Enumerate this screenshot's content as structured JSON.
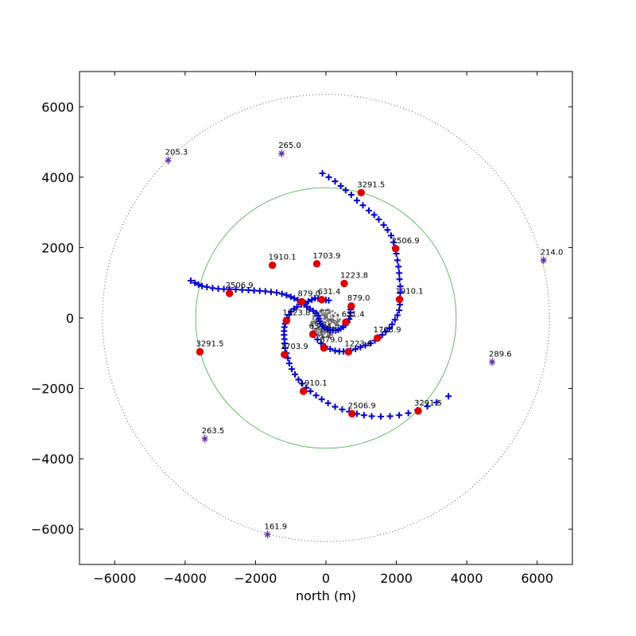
{
  "chart_data": {
    "type": "scatter",
    "title": "",
    "xlabel": "north (m)",
    "ylabel": "",
    "xlim": [
      -7000,
      7000
    ],
    "ylim": [
      -7000,
      7000
    ],
    "xticks": [
      -6000,
      -4000,
      -2000,
      0,
      2000,
      4000,
      6000
    ],
    "yticks": [
      -6000,
      -4000,
      -2000,
      0,
      2000,
      4000,
      6000
    ],
    "xtick_labels": [
      "−6000",
      "−4000",
      "−2000",
      "0",
      "2000",
      "4000",
      "6000"
    ],
    "ytick_labels": [
      "−6000",
      "−4000",
      "−2000",
      "0",
      "2000",
      "4000",
      "6000"
    ],
    "grid": false,
    "colors": {
      "antenna_marker": "#0000cc",
      "labeled_station": "#dd0000",
      "outlier_marker": "#6633aa",
      "core_points": "#555555",
      "inner_circle": "#44aa44",
      "outer_circle": "#555555"
    },
    "circles": [
      {
        "kind": "inner",
        "center": [
          0,
          0
        ],
        "radius": 3700,
        "style": "solid"
      },
      {
        "kind": "outer",
        "center": [
          0,
          0
        ],
        "radius": 6350,
        "style": "dotted"
      }
    ],
    "arms": [
      {
        "points": [
          [
            80,
            500
          ],
          [
            0,
            510
          ],
          [
            -120,
            540
          ],
          [
            -220,
            550
          ],
          [
            -310,
            560
          ],
          [
            -400,
            520
          ],
          [
            -500,
            470
          ],
          [
            -600,
            430
          ],
          [
            -700,
            380
          ],
          [
            -820,
            320
          ],
          [
            -910,
            260
          ],
          [
            -990,
            180
          ],
          [
            -1050,
            90
          ],
          [
            -1110,
            0
          ],
          [
            -1140,
            -80
          ],
          [
            -1160,
            -160
          ],
          [
            -1180,
            -260
          ],
          [
            -1190,
            -370
          ],
          [
            -1190,
            -480
          ],
          [
            -1180,
            -600
          ],
          [
            -1170,
            -720
          ],
          [
            -1160,
            -850
          ],
          [
            -1120,
            -1000
          ],
          [
            -1080,
            -1140
          ],
          [
            -1040,
            -1290
          ],
          [
            -970,
            -1450
          ],
          [
            -880,
            -1600
          ],
          [
            -780,
            -1750
          ],
          [
            -680,
            -1860
          ],
          [
            -560,
            -1980
          ],
          [
            -440,
            -2080
          ],
          [
            -280,
            -2200
          ],
          [
            -120,
            -2310
          ],
          [
            60,
            -2420
          ],
          [
            260,
            -2520
          ],
          [
            460,
            -2600
          ],
          [
            660,
            -2660
          ],
          [
            880,
            -2720
          ],
          [
            1080,
            -2760
          ],
          [
            1300,
            -2790
          ],
          [
            1560,
            -2800
          ],
          [
            1820,
            -2790
          ],
          [
            2080,
            -2760
          ],
          [
            2340,
            -2700
          ],
          [
            2600,
            -2620
          ],
          [
            2880,
            -2510
          ],
          [
            3140,
            -2400
          ],
          [
            3480,
            -2220
          ]
        ]
      },
      {
        "points": [
          [
            -320,
            -480
          ],
          [
            -240,
            -610
          ],
          [
            -140,
            -720
          ],
          [
            -20,
            -810
          ],
          [
            120,
            -880
          ],
          [
            260,
            -930
          ],
          [
            380,
            -950
          ],
          [
            500,
            -950
          ],
          [
            600,
            -940
          ],
          [
            700,
            -920
          ],
          [
            840,
            -880
          ],
          [
            980,
            -830
          ],
          [
            1120,
            -780
          ],
          [
            1260,
            -720
          ],
          [
            1390,
            -640
          ],
          [
            1490,
            -560
          ],
          [
            1600,
            -480
          ],
          [
            1700,
            -390
          ],
          [
            1800,
            -290
          ],
          [
            1880,
            -180
          ],
          [
            1960,
            -50
          ],
          [
            2030,
            80
          ],
          [
            2080,
            220
          ],
          [
            2100,
            380
          ],
          [
            2100,
            550
          ],
          [
            2110,
            720
          ],
          [
            2110,
            900
          ],
          [
            2090,
            1100
          ],
          [
            2080,
            1280
          ],
          [
            2060,
            1460
          ],
          [
            2030,
            1640
          ],
          [
            2000,
            1830
          ],
          [
            1960,
            2000
          ],
          [
            1920,
            2150
          ],
          [
            1850,
            2340
          ],
          [
            1750,
            2500
          ],
          [
            1640,
            2640
          ],
          [
            1500,
            2800
          ],
          [
            1370,
            2930
          ],
          [
            1220,
            3050
          ],
          [
            1050,
            3200
          ],
          [
            880,
            3340
          ],
          [
            720,
            3500
          ],
          [
            560,
            3630
          ],
          [
            420,
            3750
          ],
          [
            260,
            3880
          ],
          [
            80,
            4000
          ],
          [
            -100,
            4110
          ]
        ]
      },
      {
        "points": [
          [
            700,
            320
          ],
          [
            700,
            240
          ],
          [
            700,
            150
          ],
          [
            690,
            60
          ],
          [
            660,
            -30
          ],
          [
            610,
            -120
          ],
          [
            550,
            -200
          ],
          [
            490,
            -250
          ],
          [
            420,
            -300
          ],
          [
            350,
            -340
          ],
          [
            280,
            -350
          ],
          [
            200,
            -350
          ],
          [
            120,
            -340
          ],
          [
            40,
            -310
          ],
          [
            -40,
            -270
          ],
          [
            -100,
            -220
          ],
          [
            -160,
            -160
          ],
          [
            -180,
            -90
          ],
          [
            -200,
            -20
          ],
          [
            -220,
            60
          ],
          [
            -280,
            140
          ],
          [
            -360,
            200
          ],
          [
            -450,
            260
          ],
          [
            -540,
            320
          ],
          [
            -620,
            380
          ],
          [
            -700,
            440
          ],
          [
            -800,
            510
          ],
          [
            -900,
            560
          ],
          [
            -1000,
            600
          ],
          [
            -1120,
            650
          ],
          [
            -1250,
            690
          ],
          [
            -1400,
            720
          ],
          [
            -1560,
            740
          ],
          [
            -1720,
            760
          ],
          [
            -1880,
            770
          ],
          [
            -2040,
            780
          ],
          [
            -2200,
            790
          ],
          [
            -2380,
            800
          ],
          [
            -2560,
            810
          ],
          [
            -2740,
            820
          ],
          [
            -2900,
            820
          ],
          [
            -3060,
            830
          ],
          [
            -3220,
            850
          ],
          [
            -3380,
            880
          ],
          [
            -3520,
            910
          ],
          [
            -3620,
            950
          ],
          [
            -3720,
            1000
          ],
          [
            -3840,
            1060
          ]
        ]
      }
    ],
    "labeled_stations": [
      {
        "x": 1000,
        "y": 3560,
        "label": "3291.5"
      },
      {
        "x": 1980,
        "y": 1970,
        "label": "2506.9"
      },
      {
        "x": 2090,
        "y": 530,
        "label": "1910.1"
      },
      {
        "x": 1460,
        "y": -570,
        "label": "1703.9"
      },
      {
        "x": 640,
        "y": -960,
        "label": "1223.8"
      },
      {
        "x": -60,
        "y": -850,
        "label": "879.0"
      },
      {
        "x": -370,
        "y": -460,
        "label": "631.4"
      },
      {
        "x": -1120,
        "y": -80,
        "label": "1223.8"
      },
      {
        "x": -1180,
        "y": -1040,
        "label": "1703.9"
      },
      {
        "x": -640,
        "y": -2080,
        "label": "1910.1"
      },
      {
        "x": 740,
        "y": -2720,
        "label": "2506.9"
      },
      {
        "x": 2620,
        "y": -2640,
        "label": "3291.5"
      },
      {
        "x": -1520,
        "y": 1500,
        "label": "1910.1"
      },
      {
        "x": -260,
        "y": 1540,
        "label": "1703.9"
      },
      {
        "x": 520,
        "y": 980,
        "label": "1223.8"
      },
      {
        "x": 720,
        "y": 340,
        "label": "879.0"
      },
      {
        "x": 560,
        "y": -120,
        "label": "631.4"
      },
      {
        "x": -120,
        "y": 520,
        "label": "631.4"
      },
      {
        "x": -690,
        "y": 460,
        "label": "879.0"
      },
      {
        "x": -2740,
        "y": 700,
        "label": "2506.9"
      },
      {
        "x": -3580,
        "y": -960,
        "label": "3291.5"
      }
    ],
    "outlier_stations": [
      {
        "x": -4480,
        "y": 4480,
        "label": "205.3"
      },
      {
        "x": -1260,
        "y": 4670,
        "label": "265.0"
      },
      {
        "x": 6180,
        "y": 1640,
        "label": "214.0"
      },
      {
        "x": 4720,
        "y": -1250,
        "label": "289.6"
      },
      {
        "x": -3440,
        "y": -3430,
        "label": "263.5"
      },
      {
        "x": -1660,
        "y": -6150,
        "label": "161.9"
      }
    ],
    "core_cluster": {
      "center": [
        0,
        -150
      ],
      "radius": 420,
      "count": 220
    }
  }
}
